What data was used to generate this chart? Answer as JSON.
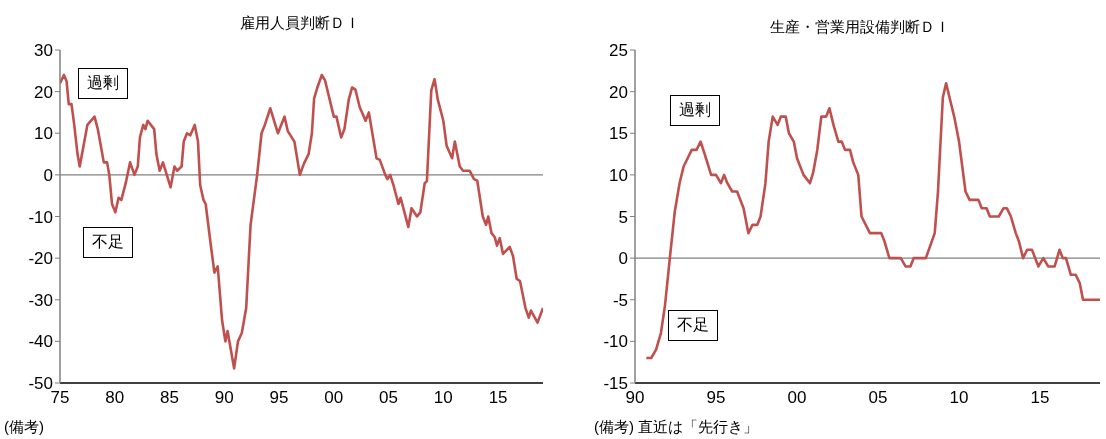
{
  "chart_data": [
    {
      "type": "line",
      "title": "雇用人員判断ＤＩ",
      "x": [
        1975.0,
        1975.36,
        1975.6,
        1975.8,
        1976.05,
        1976.3,
        1976.6,
        1976.8,
        1977.5,
        1978.15,
        1978.45,
        1979.0,
        1979.3,
        1979.5,
        1979.75,
        1980.05,
        1980.35,
        1980.6,
        1981.0,
        1981.4,
        1981.8,
        1982.1,
        1982.3,
        1982.6,
        1982.8,
        1983.0,
        1983.6,
        1983.8,
        1984.1,
        1984.4,
        1985.1,
        1985.45,
        1985.7,
        1986.1,
        1986.3,
        1986.6,
        1986.9,
        1987.3,
        1987.6,
        1987.8,
        1988.1,
        1988.3,
        1988.8,
        1989.1,
        1989.4,
        1989.8,
        1990.1,
        1990.3,
        1990.9,
        1991.25,
        1991.6,
        1992.0,
        1992.4,
        1993.0,
        1993.4,
        1993.7,
        1994.2,
        1994.9,
        1995.5,
        1995.8,
        1996.4,
        1996.9,
        1997.27,
        1997.7,
        1998.0,
        1998.2,
        1998.5,
        1998.9,
        1999.2,
        2000.0,
        2000.24,
        2000.67,
        2000.97,
        2001.36,
        2001.67,
        2001.97,
        2002.36,
        2002.9,
        2003.2,
        2003.9,
        2004.2,
        2004.7,
        2004.9,
        2005.15,
        2005.45,
        2005.9,
        2006.1,
        2006.8,
        2007.1,
        2007.6,
        2007.9,
        2008.3,
        2008.5,
        2008.9,
        2009.2,
        2009.5,
        2010.0,
        2010.3,
        2010.8,
        2011.05,
        2011.5,
        2011.8,
        2012.4,
        2012.8,
        2013.1,
        2013.6,
        2013.9,
        2014.1,
        2014.4,
        2014.7,
        2014.9,
        2015.15,
        2015.45,
        2016.06,
        2016.36,
        2016.7,
        2017.0,
        2017.5,
        2017.8,
        2018.0,
        2018.6,
        2019.1
      ],
      "series": [
        {
          "color": "#c0504d",
          "values": [
            22,
            24,
            22.5,
            17,
            17,
            12,
            5,
            2,
            12,
            14,
            11,
            3,
            3,
            0,
            -7,
            -9,
            -5.5,
            -6,
            -2,
            3,
            0,
            2,
            9,
            12,
            11,
            13,
            11,
            5,
            1,
            3,
            -3,
            2,
            1,
            2,
            8,
            10,
            9.5,
            12,
            8,
            -2.5,
            -6,
            -7,
            -17.5,
            -23.5,
            -22,
            -35,
            -40,
            -37.5,
            -46.5,
            -40,
            -38,
            -32,
            -12,
            0,
            10,
            12,
            16,
            10,
            14,
            10.5,
            8,
            0,
            2.7,
            5,
            10,
            18.3,
            21,
            24,
            22.7,
            14,
            14,
            9,
            11,
            18,
            21,
            20.5,
            16.3,
            13,
            15,
            4,
            3.6,
            0,
            -1,
            0,
            -2.5,
            -7,
            -5.5,
            -12.5,
            -8,
            -10,
            -9,
            -2,
            -1.5,
            20.3,
            23,
            18,
            13,
            7,
            4,
            8,
            2,
            1,
            1,
            -1,
            -1.4,
            -10,
            -12,
            -10,
            -14,
            -15,
            -17,
            -15.2,
            -19,
            -17.3,
            -19.5,
            -25,
            -25.5,
            -32,
            -34.3,
            -32.6,
            -35.5,
            -32
          ]
        }
      ],
      "xlim": [
        1975,
        2019.1
      ],
      "xticks": [
        {
          "value": 1975,
          "label": "75"
        },
        {
          "value": 1980,
          "label": "80"
        },
        {
          "value": 1985,
          "label": "85"
        },
        {
          "value": 1990,
          "label": "90"
        },
        {
          "value": 1995,
          "label": "95"
        },
        {
          "value": 2000,
          "label": "00"
        },
        {
          "value": 2005,
          "label": "05"
        },
        {
          "value": 2010,
          "label": "10"
        },
        {
          "value": 2015,
          "label": "15"
        }
      ],
      "ylim": [
        -50,
        30
      ],
      "yticks": [
        -50,
        -40,
        -30,
        -20,
        -10,
        0,
        10,
        20,
        30
      ],
      "ref_lines": [
        {
          "axis": "y",
          "value": 0,
          "color": "#808080"
        }
      ],
      "annotations": [
        "過剰",
        "不足",
        "(備考)"
      ],
      "grid": false,
      "legend": false,
      "marker": "none",
      "line_style": "solid"
    },
    {
      "type": "line",
      "title": "生産・営業用設備判断ＤＩ",
      "x": [
        1990.7,
        1991.0,
        1991.3,
        1991.6,
        1991.85,
        1992.15,
        1992.45,
        1992.75,
        1993.0,
        1993.25,
        1993.5,
        1993.8,
        1994.05,
        1994.3,
        1994.7,
        1995.0,
        1995.3,
        1995.5,
        1995.7,
        1996.0,
        1996.3,
        1996.7,
        1997.0,
        1997.25,
        1997.55,
        1997.75,
        1998.05,
        1998.25,
        1998.5,
        1998.8,
        1999.0,
        1999.3,
        1999.5,
        1999.8,
        2000.0,
        2000.4,
        2000.8,
        2001.0,
        2001.25,
        2001.5,
        2001.8,
        2002.0,
        2002.25,
        2002.55,
        2002.76,
        2002.96,
        2003.27,
        2003.47,
        2003.78,
        2003.98,
        2004.5,
        2005.2,
        2005.4,
        2005.7,
        2006.4,
        2006.7,
        2007.0,
        2007.2,
        2007.95,
        2008.5,
        2008.7,
        2009.0,
        2009.2,
        2009.7,
        2010.0,
        2010.4,
        2010.65,
        2011.2,
        2011.4,
        2011.7,
        2011.9,
        2012.45,
        2012.75,
        2012.95,
        2013.2,
        2013.5,
        2013.7,
        2013.95,
        2014.2,
        2014.5,
        2014.9,
        2015.2,
        2015.5,
        2015.9,
        2016.2,
        2016.4,
        2016.6,
        2016.9,
        2017.2,
        2017.45,
        2017.65,
        2018.7
      ],
      "series": [
        {
          "color": "#c0504d",
          "values": [
            -12,
            -12,
            -11,
            -9,
            -5.7,
            0,
            5.5,
            9,
            11,
            12,
            13,
            13,
            14,
            12.5,
            10,
            10,
            9,
            10,
            9,
            8,
            8,
            6,
            3,
            4,
            4,
            5,
            9,
            14,
            17,
            16,
            17,
            17,
            15,
            14,
            12,
            10,
            9,
            10.3,
            13,
            17,
            17,
            18,
            16,
            14,
            14,
            13,
            13,
            11.5,
            10,
            5,
            3,
            3,
            2,
            0,
            0,
            -1,
            -1,
            0,
            0,
            3,
            8,
            19.3,
            21,
            17,
            14,
            8,
            7,
            7,
            6,
            6,
            5,
            5,
            6,
            6,
            5,
            3,
            2,
            0,
            1,
            1,
            -1,
            0,
            -1,
            -1,
            1,
            0,
            0,
            -2,
            -2,
            -3,
            -5,
            -5
          ]
        }
      ],
      "xlim": [
        1990,
        2018.7
      ],
      "xticks": [
        {
          "value": 1990,
          "label": "90"
        },
        {
          "value": 1995,
          "label": "95"
        },
        {
          "value": 2000,
          "label": "00"
        },
        {
          "value": 2005,
          "label": "05"
        },
        {
          "value": 2010,
          "label": "10"
        },
        {
          "value": 2015,
          "label": "15"
        }
      ],
      "ylim": [
        -15,
        25
      ],
      "yticks": [
        -15,
        -10,
        -5,
        0,
        5,
        10,
        15,
        20,
        25
      ],
      "ref_lines": [
        {
          "axis": "y",
          "value": 0,
          "color": "#808080"
        }
      ],
      "annotations": [
        "過剰",
        "不足",
        "(備考) 直近は「先行き」"
      ],
      "grid": false,
      "legend": false,
      "marker": "none",
      "line_style": "solid"
    }
  ]
}
